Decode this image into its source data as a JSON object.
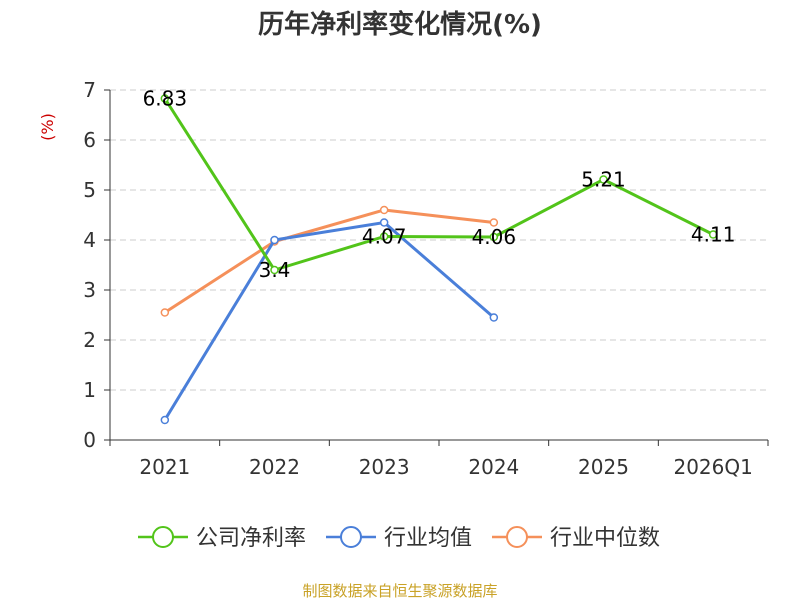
{
  "chart_data": {
    "type": "line",
    "title": "历年净利率变化情况(%)",
    "ylabel": "(%)",
    "xlabel": "",
    "categories": [
      "2021",
      "2022",
      "2023",
      "2024",
      "2025",
      "2026Q1"
    ],
    "ylim": [
      0,
      7
    ],
    "yticks": [
      0,
      1,
      2,
      3,
      4,
      5,
      6,
      7
    ],
    "grid": true,
    "legend_position": "bottom",
    "series": [
      {
        "name": "公司净利率",
        "color": "#52c41a",
        "values": [
          6.83,
          3.4,
          4.07,
          4.06,
          5.21,
          4.11
        ],
        "labels": [
          "6.83",
          "3.4",
          "4.07",
          "4.06",
          "5.21",
          "4.11"
        ]
      },
      {
        "name": "行业均值",
        "color": "#4a7fd9",
        "values": [
          0.4,
          4.0,
          4.35,
          2.45,
          null,
          null
        ]
      },
      {
        "name": "行业中位数",
        "color": "#f5905a",
        "values": [
          2.55,
          3.97,
          4.6,
          4.35,
          null,
          null
        ]
      }
    ]
  },
  "source": "制图数据来自恒生聚源数据库"
}
